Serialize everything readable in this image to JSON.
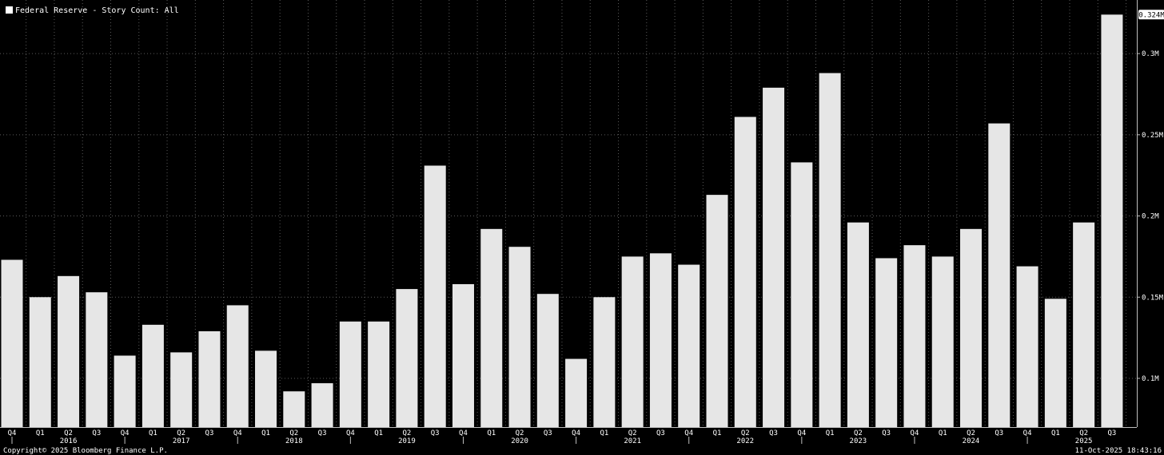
{
  "legend": {
    "label": "Federal Reserve - Story Count: All",
    "swatch_color": "#ffffff"
  },
  "footer": {
    "copyright": "Copyright© 2025 Bloomberg Finance L.P.",
    "timestamp": "11-Oct-2025 18:43:16"
  },
  "colors": {
    "background": "#000000",
    "bar": "#e6e6e6",
    "grid": "#5a5a5a",
    "text": "#ffffff"
  },
  "chart_data": {
    "type": "bar",
    "title": "",
    "xlabel": "",
    "ylabel": "",
    "grid": true,
    "legend_position": "top-left",
    "y_axis_side": "right",
    "ylim": [
      0.07,
      0.333
    ],
    "y_ticks": [
      0.1,
      0.15,
      0.2,
      0.25,
      0.3
    ],
    "y_tick_labels": [
      "0.1M",
      "0.15M",
      "0.2M",
      "0.25M",
      "0.3M"
    ],
    "last_value_label": "0.324M",
    "categories": [
      "Q4",
      "Q1",
      "Q2",
      "Q3",
      "Q4",
      "Q1",
      "Q2",
      "Q3",
      "Q4",
      "Q1",
      "Q2",
      "Q3",
      "Q4",
      "Q1",
      "Q2",
      "Q3",
      "Q4",
      "Q1",
      "Q2",
      "Q3",
      "Q4",
      "Q1",
      "Q2",
      "Q3",
      "Q4",
      "Q1",
      "Q2",
      "Q3",
      "Q4",
      "Q1",
      "Q2",
      "Q3",
      "Q4",
      "Q1",
      "Q2",
      "Q3",
      "Q4",
      "Q1",
      "Q2",
      "Q3"
    ],
    "year_labels": [
      {
        "label": "2016",
        "index": 2
      },
      {
        "label": "2017",
        "index": 6
      },
      {
        "label": "2018",
        "index": 10
      },
      {
        "label": "2019",
        "index": 14
      },
      {
        "label": "2020",
        "index": 18
      },
      {
        "label": "2021",
        "index": 22
      },
      {
        "label": "2022",
        "index": 26
      },
      {
        "label": "2023",
        "index": 30
      },
      {
        "label": "2024",
        "index": 34
      },
      {
        "label": "2025",
        "index": 38
      }
    ],
    "series": [
      {
        "values": [
          0.173,
          0.15,
          0.163,
          0.153,
          0.114,
          0.133,
          0.116,
          0.129,
          0.145,
          0.117,
          0.092,
          0.097,
          0.135,
          0.135,
          0.155,
          0.231,
          0.158,
          0.192,
          0.181,
          0.152,
          0.112,
          0.15,
          0.175,
          0.177,
          0.17,
          0.213,
          0.261,
          0.279,
          0.233,
          0.288,
          0.196,
          0.174,
          0.182,
          0.175,
          0.192,
          0.257,
          0.169,
          0.149,
          0.196,
          0.324
        ]
      }
    ]
  }
}
